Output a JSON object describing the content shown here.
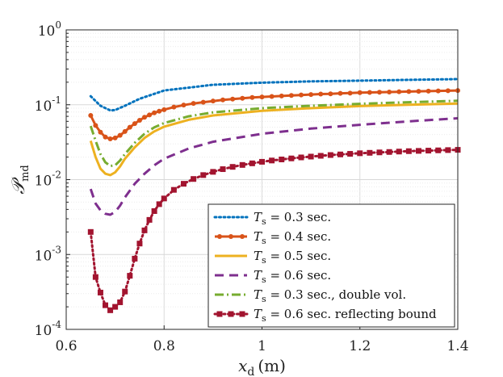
{
  "chart_data": {
    "type": "line",
    "title": "",
    "xlabel": {
      "main": "x",
      "sub": "d",
      "unit": "(m)"
    },
    "ylabel": {
      "main": "𝒫",
      "sub": "md"
    },
    "xlim": [
      0.6,
      1.4
    ],
    "ylim": [
      0.0001,
      1
    ],
    "yscale": "log",
    "xticks": [
      "0.6",
      "0.8",
      "1",
      "1.2",
      "1.4"
    ],
    "yticks": [
      {
        "base": "10",
        "exp": "0"
      },
      {
        "base": "10",
        "exp": "-1"
      },
      {
        "base": "10",
        "exp": "-2"
      },
      {
        "base": "10",
        "exp": "-3"
      },
      {
        "base": "10",
        "exp": "-4"
      }
    ],
    "grid": true,
    "legend_position": "bottom-right",
    "series": [
      {
        "name": "T_s = 0.3 sec.",
        "label_main": "T",
        "label_sub": "s",
        "label_rest": " = 0.3 sec.",
        "color": "#0072BD",
        "style": "dotted",
        "marker": "none",
        "x": [
          0.65,
          0.67,
          0.69,
          0.7,
          0.72,
          0.75,
          0.8,
          0.9,
          1.0,
          1.1,
          1.2,
          1.3,
          1.4
        ],
        "y": [
          0.13,
          0.097,
          0.084,
          0.085,
          0.097,
          0.12,
          0.155,
          0.185,
          0.197,
          0.205,
          0.21,
          0.215,
          0.22
        ]
      },
      {
        "name": "T_s = 0.4 sec.",
        "label_main": "T",
        "label_sub": "s",
        "label_rest": " = 0.4 sec.",
        "color": "#D95319",
        "style": "solid",
        "marker": "dot",
        "x": [
          0.65,
          0.66,
          0.67,
          0.68,
          0.69,
          0.7,
          0.71,
          0.72,
          0.73,
          0.74,
          0.75,
          0.76,
          0.77,
          0.78,
          0.79,
          0.8,
          0.82,
          0.84,
          0.86,
          0.88,
          0.9,
          0.92,
          0.94,
          0.96,
          0.98,
          1.0,
          1.02,
          1.04,
          1.06,
          1.08,
          1.1,
          1.12,
          1.14,
          1.16,
          1.18,
          1.2,
          1.22,
          1.24,
          1.26,
          1.28,
          1.3,
          1.32,
          1.34,
          1.36,
          1.38,
          1.4
        ],
        "y": [
          0.072,
          0.053,
          0.043,
          0.037,
          0.035,
          0.036,
          0.039,
          0.044,
          0.05,
          0.056,
          0.062,
          0.068,
          0.073,
          0.078,
          0.082,
          0.086,
          0.093,
          0.099,
          0.104,
          0.108,
          0.112,
          0.116,
          0.119,
          0.122,
          0.125,
          0.127,
          0.129,
          0.131,
          0.133,
          0.135,
          0.137,
          0.139,
          0.14,
          0.142,
          0.143,
          0.145,
          0.146,
          0.147,
          0.148,
          0.149,
          0.15,
          0.151,
          0.152,
          0.153,
          0.154,
          0.155
        ]
      },
      {
        "name": "T_s = 0.5 sec.",
        "label_main": "T",
        "label_sub": "s",
        "label_rest": " = 0.5 sec.",
        "color": "#EDB120",
        "style": "solid",
        "marker": "none",
        "x": [
          0.65,
          0.66,
          0.67,
          0.68,
          0.69,
          0.7,
          0.71,
          0.72,
          0.74,
          0.76,
          0.78,
          0.8,
          0.85,
          0.9,
          1.0,
          1.1,
          1.2,
          1.3,
          1.4
        ],
        "y": [
          0.033,
          0.02,
          0.014,
          0.012,
          0.0115,
          0.0125,
          0.015,
          0.019,
          0.027,
          0.036,
          0.044,
          0.051,
          0.063,
          0.072,
          0.083,
          0.09,
          0.096,
          0.1,
          0.104
        ]
      },
      {
        "name": "T_s = 0.6 sec.",
        "label_main": "T",
        "label_sub": "s",
        "label_rest": " = 0.6 sec.",
        "color": "#7E2F8E",
        "style": "dashed",
        "marker": "none",
        "x": [
          0.65,
          0.66,
          0.67,
          0.68,
          0.69,
          0.7,
          0.71,
          0.72,
          0.74,
          0.76,
          0.78,
          0.8,
          0.85,
          0.9,
          1.0,
          1.1,
          1.2,
          1.3,
          1.4
        ],
        "y": [
          0.0075,
          0.0048,
          0.0039,
          0.0035,
          0.0034,
          0.0037,
          0.0045,
          0.0058,
          0.0088,
          0.012,
          0.0155,
          0.019,
          0.026,
          0.032,
          0.041,
          0.048,
          0.054,
          0.06,
          0.066
        ]
      },
      {
        "name": "T_s = 0.3 sec., double vol.",
        "label_main": "T",
        "label_sub": "s",
        "label_rest": " = 0.3 sec., double vol.",
        "color": "#77AC30",
        "style": "dashdot",
        "marker": "none",
        "x": [
          0.65,
          0.66,
          0.67,
          0.68,
          0.69,
          0.7,
          0.71,
          0.72,
          0.74,
          0.76,
          0.78,
          0.8,
          0.85,
          0.9,
          1.0,
          1.1,
          1.2,
          1.3,
          1.4
        ],
        "y": [
          0.052,
          0.033,
          0.022,
          0.017,
          0.0152,
          0.0155,
          0.018,
          0.022,
          0.031,
          0.041,
          0.05,
          0.057,
          0.07,
          0.079,
          0.09,
          0.097,
          0.103,
          0.108,
          0.113
        ]
      },
      {
        "name": "T_s = 0.6 sec. reflecting bound",
        "label_main": "T",
        "label_sub": "s",
        "label_rest": " = 0.6 sec. reflecting bound",
        "color": "#A2142F",
        "style": "dotted",
        "marker": "square",
        "x": [
          0.65,
          0.66,
          0.67,
          0.68,
          0.69,
          0.7,
          0.71,
          0.72,
          0.73,
          0.74,
          0.75,
          0.76,
          0.77,
          0.78,
          0.79,
          0.8,
          0.82,
          0.84,
          0.86,
          0.88,
          0.9,
          0.92,
          0.94,
          0.96,
          0.98,
          1.0,
          1.02,
          1.04,
          1.06,
          1.08,
          1.1,
          1.12,
          1.14,
          1.16,
          1.18,
          1.2,
          1.22,
          1.24,
          1.26,
          1.28,
          1.3,
          1.32,
          1.34,
          1.36,
          1.38,
          1.4
        ],
        "y": [
          0.002,
          0.0005,
          0.00031,
          0.00021,
          0.00018,
          0.0002,
          0.00023,
          0.00032,
          0.00052,
          0.00088,
          0.0014,
          0.0021,
          0.0029,
          0.0038,
          0.0047,
          0.0056,
          0.0073,
          0.0088,
          0.0102,
          0.0115,
          0.0127,
          0.0138,
          0.0148,
          0.0157,
          0.0165,
          0.0173,
          0.018,
          0.0186,
          0.0192,
          0.0198,
          0.0203,
          0.0208,
          0.0213,
          0.0217,
          0.0221,
          0.0225,
          0.0228,
          0.0231,
          0.0234,
          0.0237,
          0.024,
          0.0242,
          0.0244,
          0.0246,
          0.0248,
          0.025
        ]
      }
    ]
  }
}
